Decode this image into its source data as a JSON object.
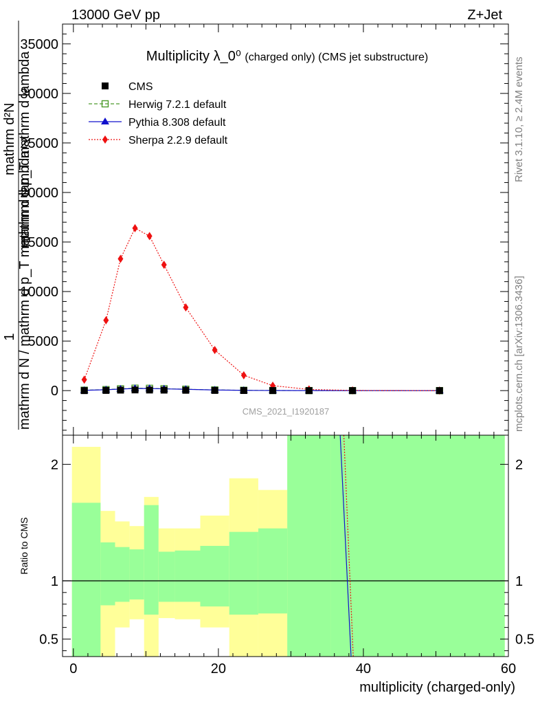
{
  "header": {
    "left_label": "13000 GeV pp",
    "right_label": "Z+Jet"
  },
  "side": {
    "rivet_label": "Rivet 3.1.10, ≥ 2.4M events",
    "mcplots_label": "mcplots.cern.ch [arXiv:1306.3436]"
  },
  "watermark": "CMS_2021_I1920187",
  "chart_data": [
    {
      "type": "line",
      "title": "Multiplicity λ_0⁰",
      "title_suffix": "(charged only) (CMS jet substructure)",
      "ylabel_numerator": "1",
      "ylabel_denominator": "mathrm d N / mathrm d p_T mathrm d lambda",
      "ylabel_inner": "mathrm d²N",
      "ylabel_inner_denominator": "mathrm d p_T mathrm d lambda",
      "xlim": [
        -1.5,
        60
      ],
      "ylim": [
        -4500,
        37000
      ],
      "yticks": [
        0,
        5000,
        10000,
        15000,
        20000,
        25000,
        30000,
        35000
      ],
      "ytick_labels": [
        "0",
        "5000",
        "10000",
        "15000",
        "20000",
        "25000",
        "30000",
        "35000"
      ],
      "legend_position": "top-left",
      "x": [
        1.5,
        4.5,
        6.5,
        8.5,
        10.5,
        12.5,
        15.5,
        19.5,
        23.5,
        27.5,
        32.5,
        38.5,
        50.5
      ],
      "series": [
        {
          "name": "CMS",
          "color": "#000000",
          "marker": "filled-square",
          "line": "none",
          "values": [
            0,
            20,
            50,
            70,
            60,
            50,
            35,
            20,
            10,
            5,
            2,
            1,
            0
          ]
        },
        {
          "name": "Herwig 7.2.1 default",
          "color": "#4c9a2a",
          "marker": "open-square",
          "line": "dashed",
          "values": [
            40,
            100,
            180,
            240,
            230,
            190,
            140,
            70,
            30,
            12,
            4,
            1,
            0
          ]
        },
        {
          "name": "Pythia 8.308 default",
          "color": "#1010cc",
          "marker": "filled-triangle",
          "line": "solid",
          "values": [
            30,
            90,
            160,
            220,
            210,
            180,
            130,
            65,
            28,
            10,
            3,
            1,
            0
          ]
        },
        {
          "name": "Sherpa 2.2.9 default",
          "color": "#ee1111",
          "marker": "filled-diamond",
          "line": "dotted",
          "values": [
            1100,
            7100,
            13300,
            16400,
            15600,
            12700,
            8400,
            4100,
            1550,
            500,
            120,
            20,
            0
          ]
        }
      ]
    },
    {
      "type": "area",
      "xlabel": "multiplicity (charged-only)",
      "ylabel": "Ratio to CMS",
      "xlim": [
        -1.5,
        60
      ],
      "ylim": [
        0.35,
        2.25
      ],
      "xticks": [
        0,
        20,
        40,
        60
      ],
      "xtick_labels": [
        "0",
        "20",
        "40",
        "60"
      ],
      "yticks": [
        0.5,
        1,
        2
      ],
      "ytick_labels": [
        "0.5",
        "1",
        "2"
      ],
      "reference_line": 1,
      "bins": [
        {
          "x0": -0.2,
          "x1": 3.75,
          "green_lo": 0.35,
          "green_hi": 1.67,
          "yellow_lo": 0.35,
          "yellow_hi": 2.15
        },
        {
          "x0": 3.75,
          "x1": 5.75,
          "green_lo": 0.79,
          "green_hi": 1.33,
          "yellow_lo": 0.35,
          "yellow_hi": 1.6
        },
        {
          "x0": 5.75,
          "x1": 7.75,
          "green_lo": 0.82,
          "green_hi": 1.29,
          "yellow_lo": 0.6,
          "yellow_hi": 1.51
        },
        {
          "x0": 7.75,
          "x1": 9.75,
          "green_lo": 0.84,
          "green_hi": 1.27,
          "yellow_lo": 0.67,
          "yellow_hi": 1.47
        },
        {
          "x0": 9.75,
          "x1": 11.75,
          "green_lo": 0.71,
          "green_hi": 1.65,
          "yellow_lo": 0.35,
          "yellow_hi": 1.72
        },
        {
          "x0": 11.75,
          "x1": 14,
          "green_lo": 0.82,
          "green_hi": 1.25,
          "yellow_lo": 0.68,
          "yellow_hi": 1.45
        },
        {
          "x0": 14,
          "x1": 17.5,
          "green_lo": 0.82,
          "green_hi": 1.26,
          "yellow_lo": 0.67,
          "yellow_hi": 1.45
        },
        {
          "x0": 17.5,
          "x1": 21.5,
          "green_lo": 0.78,
          "green_hi": 1.3,
          "yellow_lo": 0.6,
          "yellow_hi": 1.56
        },
        {
          "x0": 21.5,
          "x1": 25.5,
          "green_lo": 0.71,
          "green_hi": 1.42,
          "yellow_lo": 0.35,
          "yellow_hi": 1.88
        },
        {
          "x0": 25.5,
          "x1": 29.5,
          "green_lo": 0.72,
          "green_hi": 1.45,
          "yellow_lo": 0.35,
          "yellow_hi": 1.78
        },
        {
          "x0": 29.5,
          "x1": 35.5,
          "green_lo": 0.35,
          "green_hi": 2.25,
          "yellow_lo": 0.35,
          "yellow_hi": 2.5
        },
        {
          "x0": 35.5,
          "x1": 59.5,
          "green_lo": 0.35,
          "green_hi": 2.25,
          "yellow_lo": 0.35,
          "yellow_hi": 2.25
        }
      ],
      "series": [
        {
          "name": "Pythia 8.308 default",
          "color": "#1010cc",
          "x": [
            36.8,
            38.3
          ],
          "values": [
            2.35,
            0.33
          ]
        },
        {
          "name": "Sherpa 2.2.9 default",
          "color": "#ee1111",
          "x": [
            37.3,
            38.6
          ],
          "values": [
            2.35,
            0.33
          ]
        }
      ]
    }
  ]
}
